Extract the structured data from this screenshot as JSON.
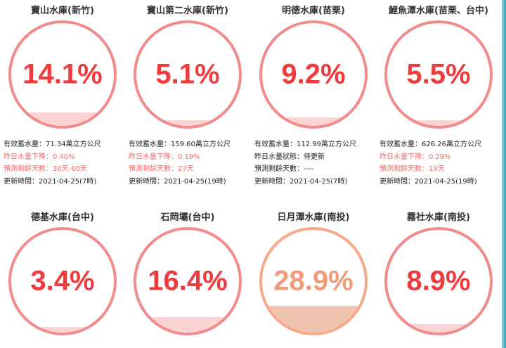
{
  "reservoirs": [
    {
      "name": "寶山水庫(新竹)",
      "percent_label": "14.1%",
      "fill_fraction": 0.141,
      "storage": "有效蓄水量：71.34萬立方公尺",
      "line2": "昨日水量下降：0.40%",
      "line3": "預測剩餘天數：30天-60天",
      "updated": "更新時間：2021-04-25(7時)",
      "warn": true
    },
    {
      "name": "寶山第二水庫(新竹)",
      "percent_label": "5.1%",
      "fill_fraction": 0.051,
      "storage": "有效蓄水量：159.60萬立方公尺",
      "line2": "昨日水量下降：0.19%",
      "line3": "預測剩餘天數：27天",
      "updated": "更新時間：2021-04-25(19時)",
      "warn": true
    },
    {
      "name": "明德水庫(苗栗)",
      "percent_label": "9.2%",
      "fill_fraction": 0.092,
      "storage": "有效蓄水量：112.99萬立方公尺",
      "line2": "昨日水量狀態：待更新",
      "line3": "預測剩餘天數：----",
      "updated": "更新時間：2021-04-25(7時)",
      "warn": false
    },
    {
      "name": "鯉魚潭水庫(苗栗、台中)",
      "percent_label": "5.5%",
      "fill_fraction": 0.055,
      "storage": "有效蓄水量：626.26萬立方公尺",
      "line2": "昨日水量下降：0.29%",
      "line3": "預測剩餘天數：19天",
      "updated": "更新時間：2021-04-25(19時)",
      "warn": true
    },
    {
      "name": "德基水庫(台中)",
      "percent_label": "3.4%",
      "fill_fraction": 0.034,
      "warn": true
    },
    {
      "name": "石岡壩(台中)",
      "percent_label": "16.4%",
      "fill_fraction": 0.164,
      "warn": true
    },
    {
      "name": "日月潭水庫(南投)",
      "percent_label": "28.9%",
      "fill_fraction": 0.289,
      "warn": false,
      "style": "orange"
    },
    {
      "name": "霧社水庫(南投)",
      "percent_label": "8.9%",
      "fill_fraction": 0.089,
      "warn": true
    }
  ]
}
